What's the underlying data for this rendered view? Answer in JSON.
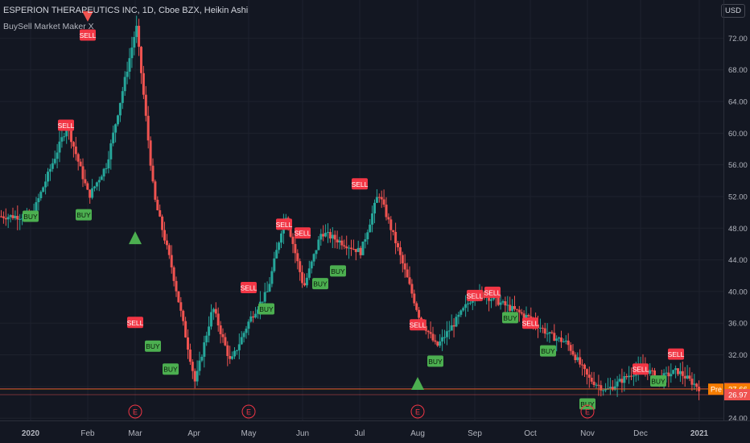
{
  "header": {
    "title": "ESPERION THERAPEUTICS INC, 1D, Cboe BZX, Heikin Ashi",
    "indicator": "BuySell Market Maker X",
    "currency": "USD"
  },
  "colors": {
    "background": "#131722",
    "up": "#26a69a",
    "down": "#ef5350",
    "buy_label": "#4caf50",
    "sell_label": "#f23645",
    "grid": "#1e222d",
    "axis_text": "#b2b5be",
    "pre_label": "#f57c00",
    "earnings": "#f23645"
  },
  "chart_data": {
    "type": "candlestick",
    "style": "Heikin Ashi",
    "ylim": [
      22.9,
      75.5
    ],
    "y_ticks": [
      "72.00",
      "68.00",
      "64.00",
      "60.00",
      "56.00",
      "52.00",
      "48.00",
      "44.00",
      "40.00",
      "36.00",
      "32.00",
      "28.00",
      "24.00"
    ],
    "x_ticks": [
      "2020",
      "Feb",
      "Mar",
      "Apr",
      "May",
      "Jun",
      "Jul",
      "Aug",
      "Sep",
      "Oct",
      "Nov",
      "Dec",
      "2021"
    ],
    "price_labels": [
      {
        "value": 27.74,
        "text": "27.74",
        "kind": "red"
      },
      {
        "value": 27.66,
        "text": "27.66",
        "kind": "pre",
        "tag": "Pre"
      },
      {
        "value": 26.97,
        "text": "26.97",
        "kind": "red"
      }
    ],
    "path_x": [
      "2020",
      "Jan",
      "Feb",
      "Feb",
      "Mar",
      "Mar",
      "Mar",
      "Apr",
      "Apr",
      "Apr",
      "May",
      "May",
      "May",
      "Jun",
      "Jun",
      "Jul",
      "Jul",
      "Jul",
      "Aug",
      "Aug",
      "Aug",
      "Sep",
      "Sep",
      "Oct",
      "Oct",
      "Oct",
      "Nov",
      "Nov",
      "Dec",
      "Dec",
      "Dec",
      "2021"
    ],
    "path_y": [
      49.5,
      61.0,
      52.0,
      56.0,
      73.5,
      52.0,
      43.0,
      28.5,
      38.0,
      31.0,
      36.5,
      40.0,
      50.0,
      40.5,
      47.5,
      45.0,
      52.5,
      46.0,
      37.0,
      33.0,
      36.0,
      40.0,
      39.0,
      36.5,
      34.5,
      33.5,
      29.0,
      27.5,
      30.5,
      29.0,
      30.0,
      27.7
    ],
    "signals": [
      {
        "type": "BUY",
        "at": "2020",
        "price": 49.5
      },
      {
        "type": "SELL",
        "at": "Jan",
        "price": 61.0
      },
      {
        "type": "BUY",
        "at": "Jan",
        "price": 49.7
      },
      {
        "type": "SELL",
        "at": "Feb",
        "price": 72.4
      },
      {
        "type": "SELL",
        "at": "Mar",
        "price": 36.1
      },
      {
        "type": "BUY",
        "at": "Mar",
        "price": 33.1
      },
      {
        "type": "BUY",
        "at": "Mar",
        "price": 30.2
      },
      {
        "type": "SELL",
        "at": "May",
        "price": 40.5
      },
      {
        "type": "BUY",
        "at": "May",
        "price": 37.8
      },
      {
        "type": "SELL",
        "at": "May",
        "price": 48.5
      },
      {
        "type": "SELL",
        "at": "Jun",
        "price": 47.4
      },
      {
        "type": "BUY",
        "at": "Jun",
        "price": 41.0
      },
      {
        "type": "BUY",
        "at": "Jun",
        "price": 42.6
      },
      {
        "type": "SELL",
        "at": "Jul",
        "price": 53.6
      },
      {
        "type": "SELL",
        "at": "Aug",
        "price": 35.8
      },
      {
        "type": "BUY",
        "at": "Aug",
        "price": 31.2
      },
      {
        "type": "SELL",
        "at": "Sep",
        "price": 39.5
      },
      {
        "type": "SELL",
        "at": "Sep",
        "price": 39.9
      },
      {
        "type": "BUY",
        "at": "Sep",
        "price": 36.7
      },
      {
        "type": "SELL",
        "at": "Oct",
        "price": 36.0
      },
      {
        "type": "BUY",
        "at": "Oct",
        "price": 32.5
      },
      {
        "type": "BUY",
        "at": "Nov",
        "price": 25.8
      },
      {
        "type": "SELL",
        "at": "Dec",
        "price": 30.2
      },
      {
        "type": "BUY",
        "at": "Dec",
        "price": 28.7
      },
      {
        "type": "SELL",
        "at": "Dec",
        "price": 32.1
      }
    ],
    "arrows": [
      {
        "dir": "down",
        "at": "Feb",
        "price": 74.8
      },
      {
        "dir": "up",
        "at": "Mar",
        "price": 46.8
      },
      {
        "dir": "up",
        "at": "Aug",
        "price": 28.4
      }
    ],
    "earnings_markers": [
      {
        "at": "Mar",
        "label": "E"
      },
      {
        "at": "May",
        "label": "E"
      },
      {
        "at": "Aug",
        "label": "E"
      },
      {
        "at": "Nov",
        "label": "E"
      }
    ],
    "grid": true
  }
}
